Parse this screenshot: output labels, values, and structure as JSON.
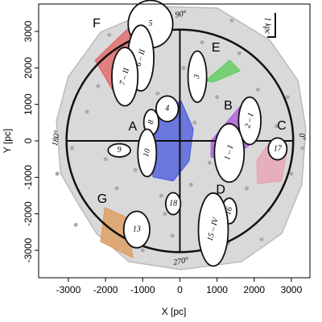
{
  "chart_data": {
    "type": "scatter",
    "xlabel": "X [pc]",
    "ylabel": "Y [pc]",
    "xlim": [
      -3800,
      3500
    ],
    "ylim": [
      -3750,
      3750
    ],
    "xticks": [
      -3000,
      -2000,
      -1000,
      0,
      1000,
      2000,
      3000
    ],
    "yticks": [
      -3000,
      -2000,
      -1000,
      0,
      1000,
      2000,
      3000
    ],
    "point_color": "#aaaaaa",
    "x": [
      -3300,
      -2900,
      -2500,
      -2200,
      -2000,
      -1700,
      -1500,
      -1200,
      -900,
      -600,
      -500,
      -400,
      -200,
      100,
      300,
      600,
      800,
      1000,
      1300,
      1600,
      1800,
      2100,
      2400,
      2600,
      2900,
      3000,
      -2800,
      -1900,
      400,
      1400,
      -1000,
      2200,
      3300
    ],
    "y": [
      -900,
      -200,
      800,
      1500,
      -500,
      -1300,
      2100,
      -800,
      2800,
      1300,
      -1500,
      -2000,
      -2600,
      2000,
      -1200,
      2700,
      -600,
      1200,
      -2800,
      2400,
      -1300,
      1400,
      -1900,
      400,
      1200,
      -900,
      -2300,
      2900,
      500,
      3300,
      -3000,
      -2700,
      -200
    ],
    "hull": {
      "color": "#d9d9d9",
      "x": [
        -2130,
        -510,
        1010,
        2420,
        3180,
        3390,
        3280,
        2740,
        1660,
        30,
        -1370,
        -2240,
        -2780,
        -3210,
        -3320,
        -3000
      ],
      "y": [
        2980,
        3680,
        3640,
        2760,
        1650,
        330,
        -1210,
        -2540,
        -3310,
        -3530,
        -3310,
        -2540,
        -1650,
        -880,
        550,
        1760
      ]
    },
    "circle": {
      "x": 0,
      "y": 0,
      "r": 3050
    },
    "regions": [
      {
        "name": "F",
        "color": "#e06060",
        "label_x": -2240,
        "label_y": 3200,
        "x": [
          -2280,
          -1270,
          -990,
          -1270,
          -1810
        ],
        "y": [
          2210,
          3200,
          2650,
          1430,
          1390
        ]
      },
      {
        "name": "E",
        "color": "#55cc55",
        "label_x": 970,
        "label_y": 2540,
        "x": [
          690,
          1340,
          1620,
          900
        ],
        "y": [
          1650,
          2210,
          1920,
          1610
        ]
      },
      {
        "name": "A",
        "color": "#4455dd",
        "label_x": -1270,
        "label_y": 375,
        "x": [
          -610,
          30,
          360,
          250,
          -180,
          -720,
          -830
        ],
        "y": [
          660,
          1100,
          330,
          -550,
          -1100,
          -990,
          -110
        ]
      },
      {
        "name": "B",
        "color": "#aa55dd",
        "label_x": 1300,
        "label_y": 950,
        "x": [
          840,
          1660,
          2200,
          1880,
          1330,
          840
        ],
        "y": [
          0,
          990,
          660,
          -110,
          -550,
          -440
        ]
      },
      {
        "name": "C",
        "color": "#e8a0b0",
        "label_x": 2740,
        "label_y": 400,
        "x": [
          2070,
          2330,
          2870,
          2740,
          2090
        ],
        "y": [
          -550,
          -150,
          -330,
          -1100,
          -1170
        ]
      },
      {
        "name": "D",
        "color": "#66cccc",
        "label_x": 1100,
        "label_y": -1350,
        "x": [
          970,
          1230,
          1490,
          1340
        ],
        "y": [
          -1830,
          -1610,
          -1760,
          -2100
        ]
      },
      {
        "name": "G",
        "color": "#dd9955",
        "label_x": -2090,
        "label_y": -1610,
        "x": [
          -2020,
          -1420,
          -1270,
          -2130
        ],
        "y": [
          -1830,
          -2100,
          -3200,
          -2760
        ]
      }
    ],
    "blobs": [
      {
        "label": "5",
        "x": -790,
        "y": 3200,
        "w": 600,
        "h": 650
      },
      {
        "label": "6 – II",
        "x": -1050,
        "y": 2270,
        "w": 350,
        "h": 900
      },
      {
        "label": "7 – II",
        "x": -1480,
        "y": 1760,
        "w": 350,
        "h": 800
      },
      {
        "label": "3",
        "x": 470,
        "y": 1760,
        "w": 250,
        "h": 700
      },
      {
        "label": "4",
        "x": -340,
        "y": 880,
        "w": 300,
        "h": 350
      },
      {
        "label": "8",
        "x": -770,
        "y": 510,
        "w": 200,
        "h": 350
      },
      {
        "label": "2 – I",
        "x": 1880,
        "y": 550,
        "w": 300,
        "h": 650
      },
      {
        "label": "1 – I",
        "x": 1330,
        "y": -330,
        "w": 400,
        "h": 800
      },
      {
        "label": "17",
        "x": 2630,
        "y": -220,
        "w": 250,
        "h": 300
      },
      {
        "label": "10",
        "x": -880,
        "y": -330,
        "w": 250,
        "h": 650
      },
      {
        "label": "9",
        "x": -1630,
        "y": -260,
        "w": 300,
        "h": 180
      },
      {
        "label": "18",
        "x": -180,
        "y": -1720,
        "w": 200,
        "h": 300
      },
      {
        "label": "16",
        "x": 1330,
        "y": -1920,
        "w": 200,
        "h": 350
      },
      {
        "label": "15 – IV",
        "x": 900,
        "y": -2430,
        "w": 400,
        "h": 1000
      },
      {
        "label": "13",
        "x": -1160,
        "y": -2430,
        "w": 350,
        "h": 500
      }
    ],
    "annotations": [
      {
        "text": "90°",
        "x": 30,
        "y": 3460
      },
      {
        "text": "0°",
        "x": 3280,
        "y": 110
      },
      {
        "text": "270°",
        "x": 30,
        "y": -3310
      },
      {
        "text": "180°",
        "x": -3320,
        "y": 70
      },
      {
        "text": "1 kpc",
        "x": 2350,
        "y": 3150
      }
    ]
  }
}
